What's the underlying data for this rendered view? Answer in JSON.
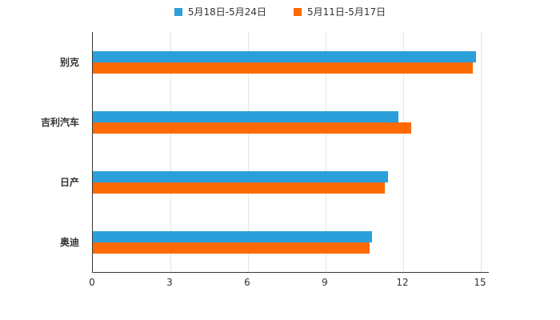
{
  "chart_data": {
    "type": "bar",
    "orientation": "horizontal",
    "title": "",
    "categories": [
      "别克",
      "吉利汽车",
      "日产",
      "奥迪"
    ],
    "series": [
      {
        "name": "5月18日-5月24日",
        "color": "#2b9fd9",
        "values": [
          14.8,
          11.8,
          11.4,
          10.8
        ]
      },
      {
        "name": "5月11日-5月17日",
        "color": "#fb6a04",
        "values": [
          14.7,
          12.3,
          11.3,
          10.7
        ]
      }
    ],
    "xticks": [
      0,
      3,
      6,
      9,
      12,
      15
    ],
    "xlim": [
      0,
      15
    ],
    "grid": true,
    "legend_position": "top",
    "axis_color": "#3a3a3a",
    "gridline_color": "#e4e4e4"
  }
}
